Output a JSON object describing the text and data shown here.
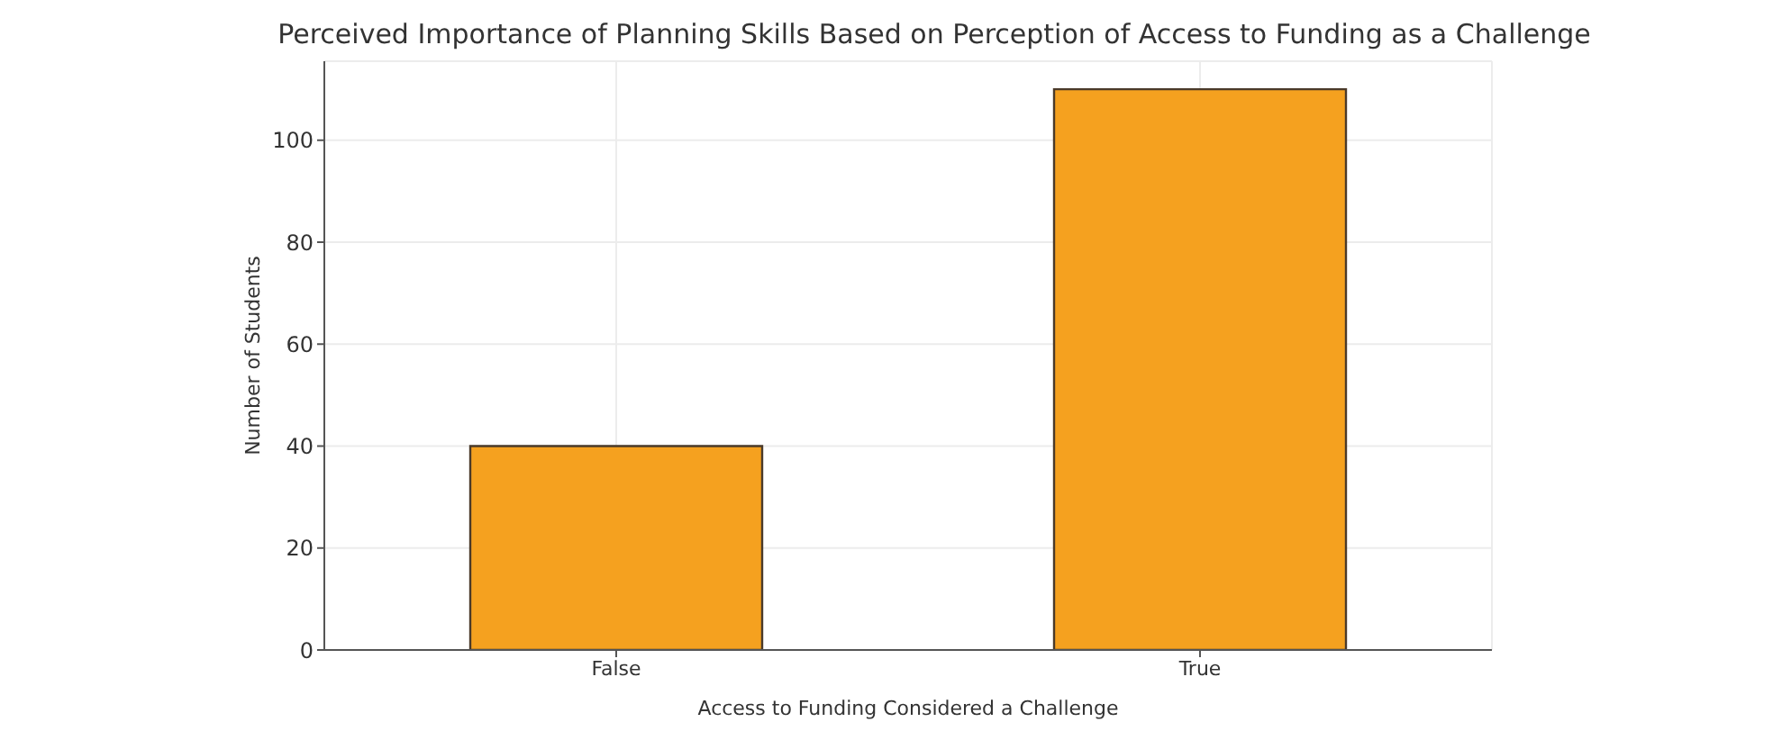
{
  "chart_data": {
    "type": "bar",
    "title": "Perceived Importance of Planning Skills Based on Perception of Access to Funding as a Challenge",
    "xlabel": "Access to Funding Considered a Challenge",
    "ylabel": "Number of Students",
    "categories": [
      "False",
      "True"
    ],
    "values": [
      40,
      110
    ],
    "color": "#f5a11f",
    "ylim": [
      0,
      115.5
    ],
    "yticks": [
      0,
      20,
      40,
      60,
      80,
      100
    ],
    "grid": true
  }
}
